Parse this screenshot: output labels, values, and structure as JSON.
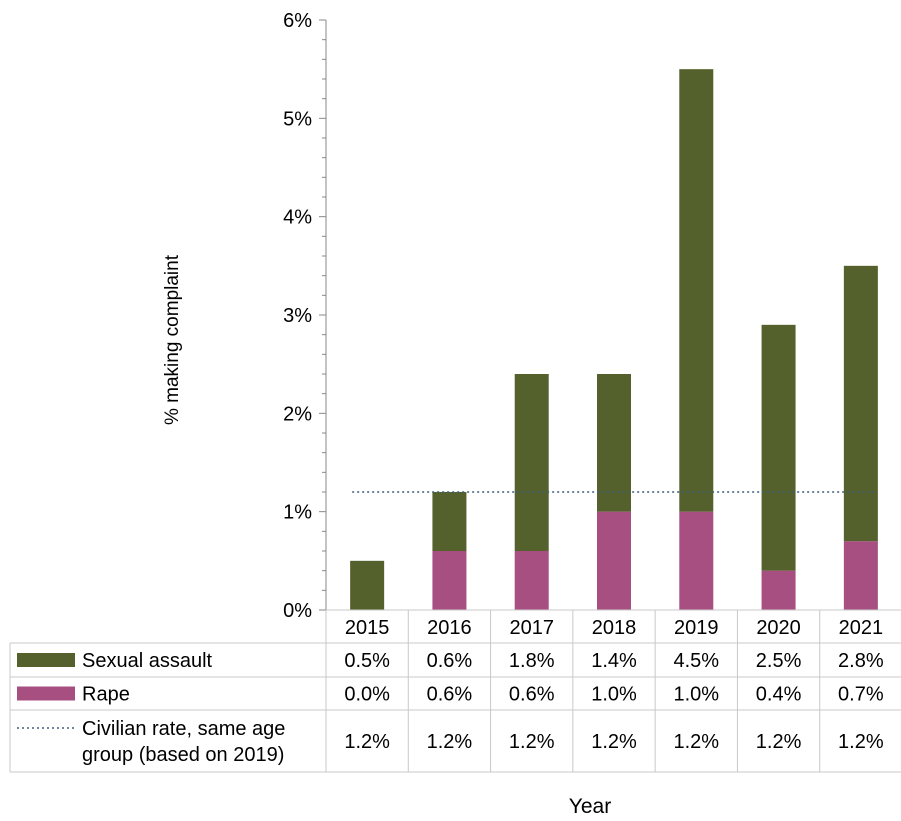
{
  "chart_data": {
    "type": "bar",
    "stacked": true,
    "categories": [
      "2015",
      "2016",
      "2017",
      "2018",
      "2019",
      "2020",
      "2021"
    ],
    "series": [
      {
        "name": "Rape",
        "values": [
          0.0,
          0.6,
          0.6,
          1.0,
          1.0,
          0.4,
          0.7
        ],
        "color": "#a64f80"
      },
      {
        "name": "Sexual assault",
        "values": [
          0.5,
          0.6,
          1.8,
          1.4,
          4.5,
          2.5,
          2.8
        ],
        "color": "#55612c"
      }
    ],
    "reference_line": {
      "name": "Civilian rate, same age group (based on 2019)",
      "value": 1.2,
      "color": "#3f5e7a",
      "style": "dotted"
    },
    "table": {
      "rows": [
        {
          "label": "Sexual assault",
          "values": [
            "0.5%",
            "0.6%",
            "1.8%",
            "1.4%",
            "4.5%",
            "2.5%",
            "2.8%"
          ]
        },
        {
          "label": "Rape",
          "values": [
            "0.0%",
            "0.6%",
            "0.6%",
            "1.0%",
            "1.0%",
            "0.4%",
            "0.7%"
          ]
        },
        {
          "label_lines": [
            "Civilian rate, same age",
            "group (based on 2019)"
          ],
          "values": [
            "1.2%",
            "1.2%",
            "1.2%",
            "1.2%",
            "1.2%",
            "1.2%",
            "1.2%"
          ]
        }
      ]
    },
    "ylabel": "% making complaint",
    "xlabel": "Year",
    "ylim": [
      0,
      6
    ],
    "yticks": [
      "0%",
      "1%",
      "2%",
      "3%",
      "4%",
      "5%",
      "6%"
    ],
    "grid": false,
    "legend": "data-table"
  }
}
